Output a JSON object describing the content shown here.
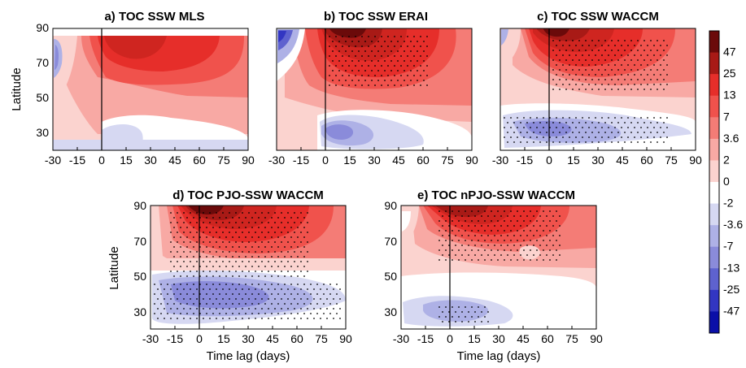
{
  "colorbar": {
    "labels": [
      "47",
      "25",
      "13",
      "7",
      "3.6",
      "2",
      "0",
      "-2",
      "-3.6",
      "-7",
      "-13",
      "-25",
      "-47"
    ],
    "colors": [
      "#6b0a0a",
      "#a81a16",
      "#e62e2a",
      "#f0524c",
      "#f47c76",
      "#f8a9a4",
      "#fbd3cf",
      "#ffffff",
      "#d6d8f2",
      "#aeb1e6",
      "#8a8bda",
      "#5e62cf",
      "#3236c2",
      "#0a0fa8"
    ]
  },
  "chart_data": [
    {
      "type": "heatmap",
      "panel": "a",
      "title": "a) TOC  SSW  MLS",
      "xlabel": "",
      "ylabel": "Latitude",
      "x_ticks": [
        "-30",
        "-15",
        "0",
        "15",
        "30",
        "45",
        "60",
        "75",
        "90"
      ],
      "y_ticks": [
        "90",
        "70",
        "50",
        "30"
      ],
      "xlim": [
        -30,
        90
      ],
      "ylim": [
        20,
        90
      ],
      "features": [
        {
          "kind": "max",
          "lag": 10,
          "lat": 85,
          "value": 13
        },
        {
          "kind": "min",
          "lag": -22,
          "lat": 75,
          "value": -7
        },
        {
          "kind": "min",
          "lag": 20,
          "lat": 25,
          "value": -2
        }
      ],
      "stippling": false
    },
    {
      "type": "heatmap",
      "panel": "b",
      "title": "b) TOC  SSW  ERAI",
      "xlabel": "",
      "ylabel": "",
      "x_ticks": [
        "-30",
        "-15",
        "0",
        "15",
        "30",
        "45",
        "60",
        "75",
        "90"
      ],
      "y_ticks": [],
      "xlim": [
        -30,
        90
      ],
      "ylim": [
        20,
        90
      ],
      "features": [
        {
          "kind": "max",
          "lag": 5,
          "lat": 85,
          "value": 47
        },
        {
          "kind": "min",
          "lag": -25,
          "lat": 85,
          "value": -13
        },
        {
          "kind": "min",
          "lag": 10,
          "lat": 30,
          "value": -7
        }
      ],
      "stippling": true
    },
    {
      "type": "heatmap",
      "panel": "c",
      "title": "c) TOC  SSW  WACCM",
      "xlabel": "",
      "ylabel": "",
      "x_ticks": [
        "-30",
        "-15",
        "0",
        "15",
        "30",
        "45",
        "60",
        "75",
        "90"
      ],
      "y_ticks": [],
      "xlim": [
        -30,
        90
      ],
      "ylim": [
        20,
        90
      ],
      "features": [
        {
          "kind": "max",
          "lag": 2,
          "lat": 88,
          "value": 47
        },
        {
          "kind": "min",
          "lag": 10,
          "lat": 30,
          "value": -3.6
        }
      ],
      "stippling": true
    },
    {
      "type": "heatmap",
      "panel": "d",
      "title": "d) TOC  PJO-SSW  WACCM",
      "xlabel": "Time lag (days)",
      "ylabel": "Latitude",
      "x_ticks": [
        "-30",
        "-15",
        "0",
        "15",
        "30",
        "45",
        "60",
        "75",
        "90"
      ],
      "y_ticks": [
        "90",
        "70",
        "50",
        "30"
      ],
      "xlim": [
        -30,
        90
      ],
      "ylim": [
        20,
        90
      ],
      "features": [
        {
          "kind": "max",
          "lag": 2,
          "lat": 88,
          "value": 47
        },
        {
          "kind": "min",
          "lag": 20,
          "lat": 32,
          "value": -7
        }
      ],
      "stippling": true
    },
    {
      "type": "heatmap",
      "panel": "e",
      "title": "e) TOC  nPJO-SSW  WACCM",
      "xlabel": "Time lag (days)",
      "ylabel": "",
      "x_ticks": [
        "-30",
        "-15",
        "0",
        "15",
        "30",
        "45",
        "60",
        "75",
        "90"
      ],
      "y_ticks": [
        "90",
        "70",
        "50",
        "30"
      ],
      "xlim": [
        -30,
        90
      ],
      "ylim": [
        20,
        90
      ],
      "features": [
        {
          "kind": "max",
          "lag": 0,
          "lat": 88,
          "value": 47
        },
        {
          "kind": "min",
          "lag": 5,
          "lat": 28,
          "value": -3.6
        }
      ],
      "stippling": true
    }
  ]
}
